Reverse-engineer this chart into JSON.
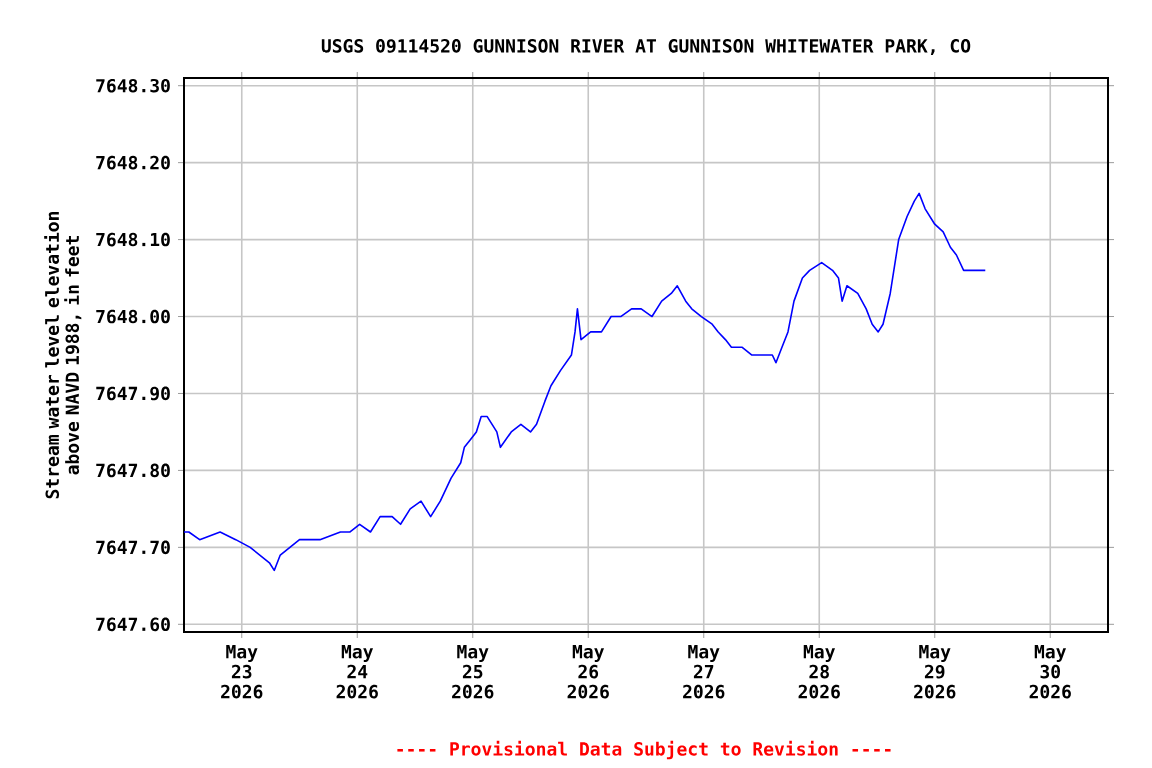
{
  "chart_data": {
    "type": "line",
    "title": "USGS 09114520 GUNNISON RIVER AT GUNNISON WHITEWATER PARK, CO",
    "ylabel": "Stream water level elevation above NAVD 1988, in feet",
    "annotations": [
      "---- Provisional Data Subject to Revision ----"
    ],
    "xlim": [
      "2026-05-22T12:00",
      "2026-05-30T12:00"
    ],
    "xticks": [
      {
        "value": "2026-05-23",
        "label": "May 23 2026"
      },
      {
        "value": "2026-05-24",
        "label": "May 24 2026"
      },
      {
        "value": "2026-05-25",
        "label": "May 25 2026"
      },
      {
        "value": "2026-05-26",
        "label": "May 26 2026"
      },
      {
        "value": "2026-05-27",
        "label": "May 27 2026"
      },
      {
        "value": "2026-05-28",
        "label": "May 28 2026"
      },
      {
        "value": "2026-05-29",
        "label": "May 29 2026"
      },
      {
        "value": "2026-05-30",
        "label": "May 30 2026"
      }
    ],
    "ylim": [
      7647.59,
      7648.31
    ],
    "yticks": [
      {
        "value": 7647.6,
        "label": "7647.60"
      },
      {
        "value": 7647.7,
        "label": "7647.70"
      },
      {
        "value": 7647.8,
        "label": "7647.80"
      },
      {
        "value": 7647.9,
        "label": "7647.90"
      },
      {
        "value": 7648.0,
        "label": "7648.00"
      },
      {
        "value": 7648.1,
        "label": "7648.10"
      },
      {
        "value": 7648.2,
        "label": "7648.20"
      },
      {
        "value": 7648.3,
        "label": "7648.30"
      }
    ],
    "grid": true,
    "series": [
      {
        "color": "#0000ff",
        "x": [
          "2026-05-22T12:00",
          "2026-05-22T13:00",
          "2026-05-22T15:15",
          "2026-05-22T19:30",
          "2026-05-22T22:45",
          "2026-05-23T01:45",
          "2026-05-23T05:45",
          "2026-05-23T06:45",
          "2026-05-23T08:00",
          "2026-05-23T12:00",
          "2026-05-23T16:15",
          "2026-05-23T20:30",
          "2026-05-23T22:30",
          "2026-05-24T00:30",
          "2026-05-24T02:45",
          "2026-05-24T04:45",
          "2026-05-24T07:15",
          "2026-05-24T09:00",
          "2026-05-24T11:00",
          "2026-05-24T13:15",
          "2026-05-24T15:15",
          "2026-05-24T17:15",
          "2026-05-24T19:30",
          "2026-05-24T21:30",
          "2026-05-24T22:15",
          "2026-05-24T23:30",
          "2026-05-25T00:45",
          "2026-05-25T01:45",
          "2026-05-25T03:00",
          "2026-05-25T05:00",
          "2026-05-25T05:45",
          "2026-05-25T08:00",
          "2026-05-25T10:00",
          "2026-05-25T12:00",
          "2026-05-25T13:15",
          "2026-05-25T15:00",
          "2026-05-25T16:15",
          "2026-05-25T18:15",
          "2026-05-25T20:30",
          "2026-05-25T21:15",
          "2026-05-25T21:45",
          "2026-05-25T22:30",
          "2026-05-26T00:30",
          "2026-05-26T02:45",
          "2026-05-26T04:45",
          "2026-05-26T06:45",
          "2026-05-26T09:00",
          "2026-05-26T11:00",
          "2026-05-26T13:15",
          "2026-05-26T15:15",
          "2026-05-26T17:15",
          "2026-05-26T18:30",
          "2026-05-26T20:15",
          "2026-05-26T21:30",
          "2026-05-26T23:30",
          "2026-05-27T01:45",
          "2026-05-27T03:00",
          "2026-05-27T04:30",
          "2026-05-27T05:45",
          "2026-05-27T08:00",
          "2026-05-27T10:00",
          "2026-05-27T12:00",
          "2026-05-27T14:15",
          "2026-05-27T15:00",
          "2026-05-27T16:15",
          "2026-05-27T17:30",
          "2026-05-27T18:45",
          "2026-05-27T20:30",
          "2026-05-27T22:00",
          "2026-05-28T00:30",
          "2026-05-28T02:45",
          "2026-05-28T04:00",
          "2026-05-28T04:45",
          "2026-05-28T05:45",
          "2026-05-28T08:00",
          "2026-05-28T09:45",
          "2026-05-28T11:00",
          "2026-05-28T12:15",
          "2026-05-28T13:15",
          "2026-05-28T14:45",
          "2026-05-28T16:30",
          "2026-05-28T18:15",
          "2026-05-28T19:45",
          "2026-05-28T20:45",
          "2026-05-28T22:00",
          "2026-05-29T00:00",
          "2026-05-29T01:45",
          "2026-05-29T03:15",
          "2026-05-29T04:30",
          "2026-05-29T06:00",
          "2026-05-29T08:00",
          "2026-05-29T10:00",
          "2026-05-29T10:30"
        ],
        "values": [
          7647.72,
          7647.72,
          7647.71,
          7647.72,
          7647.71,
          7647.7,
          7647.68,
          7647.67,
          7647.69,
          7647.71,
          7647.71,
          7647.72,
          7647.72,
          7647.73,
          7647.72,
          7647.74,
          7647.74,
          7647.73,
          7647.75,
          7647.76,
          7647.74,
          7647.76,
          7647.79,
          7647.81,
          7647.83,
          7647.84,
          7647.85,
          7647.87,
          7647.87,
          7647.85,
          7647.83,
          7647.85,
          7647.86,
          7647.85,
          7647.86,
          7647.89,
          7647.91,
          7647.93,
          7647.95,
          7647.98,
          7648.01,
          7647.97,
          7647.98,
          7647.98,
          7648.0,
          7648.0,
          7648.01,
          7648.01,
          7648.0,
          7648.02,
          7648.03,
          7648.04,
          7648.02,
          7648.01,
          7648.0,
          7647.99,
          7647.98,
          7647.97,
          7647.96,
          7647.96,
          7647.95,
          7647.95,
          7647.95,
          7647.94,
          7647.96,
          7647.98,
          7648.02,
          7648.05,
          7648.06,
          7648.07,
          7648.06,
          7648.05,
          7648.02,
          7648.04,
          7648.03,
          7648.01,
          7647.99,
          7647.98,
          7647.99,
          7648.03,
          7648.1,
          7648.13,
          7648.15,
          7648.16,
          7648.14,
          7648.12,
          7648.11,
          7648.09,
          7648.08,
          7648.06,
          7648.06,
          7648.06,
          7648.06
        ]
      }
    ]
  }
}
